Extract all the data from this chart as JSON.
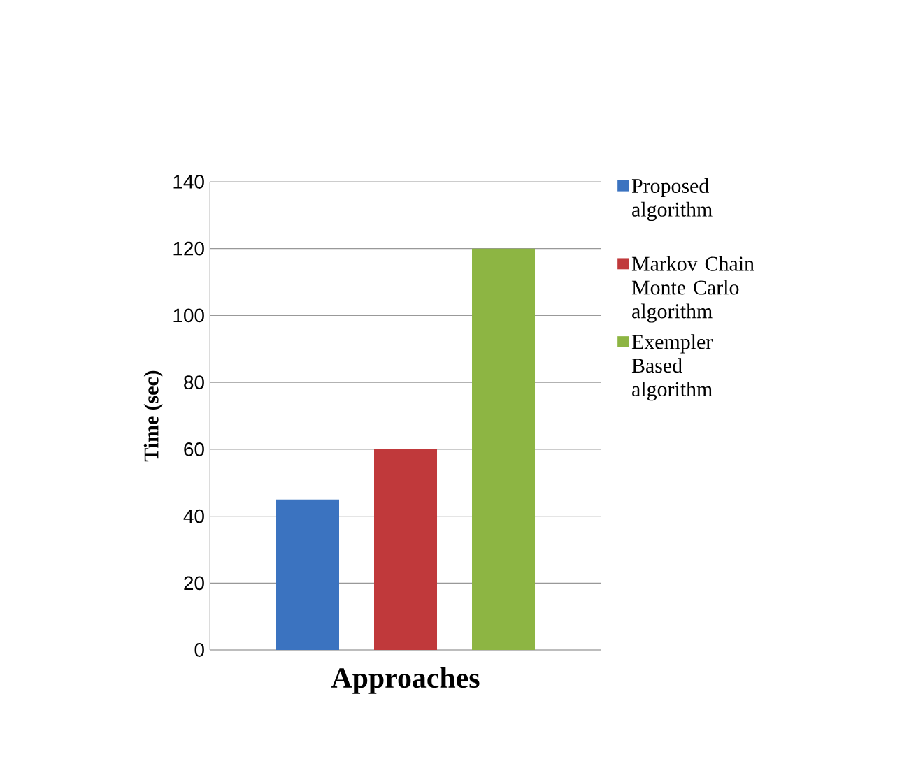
{
  "chart_data": {
    "type": "bar",
    "xlabel": "Approaches",
    "ylabel": "Time (sec)",
    "categories": [
      null
    ],
    "series": [
      {
        "name": "Proposed algorithm",
        "color": "#3b73c0",
        "values": [
          45
        ]
      },
      {
        "name": "Markov Chain Monte Carlo algorithm",
        "color": "#c0393b",
        "values": [
          60
        ]
      },
      {
        "name": "Exempler Based algorithm",
        "color": "#8db543",
        "values": [
          120
        ]
      }
    ],
    "ylim": [
      0,
      140
    ],
    "yticks": [
      0,
      20,
      40,
      60,
      80,
      100,
      120,
      140
    ],
    "grid": "y",
    "legend": "right"
  }
}
